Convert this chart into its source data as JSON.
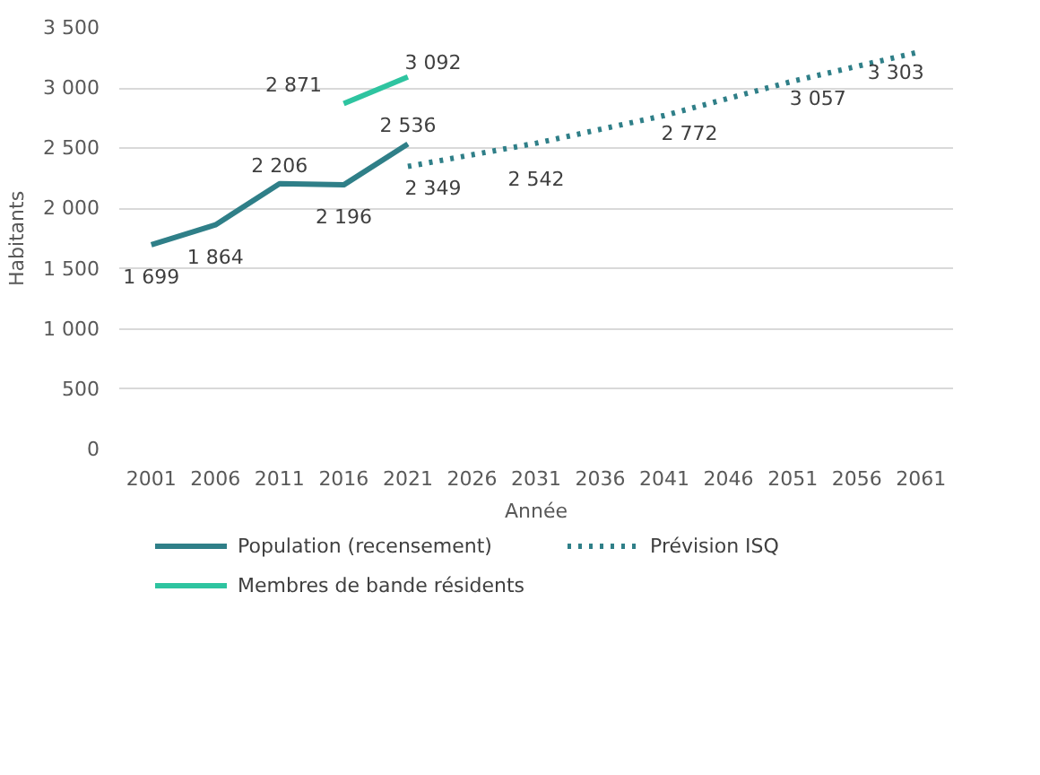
{
  "chart_data": {
    "type": "line",
    "xlabel": "Année",
    "ylabel": "Habitants",
    "xlim": [
      1998.5,
      2063.5
    ],
    "ylim": [
      0,
      3500
    ],
    "xticks": [
      2001,
      2006,
      2011,
      2016,
      2021,
      2026,
      2031,
      2036,
      2041,
      2046,
      2051,
      2056,
      2061
    ],
    "yticks": [
      0,
      500,
      {
        "value": 1000,
        "label": "1 000"
      },
      {
        "value": 1500,
        "label": "1 500"
      },
      {
        "value": 2000,
        "label": "2 000"
      },
      {
        "value": 2500,
        "label": "2 500"
      },
      {
        "value": 3000,
        "label": "3 000"
      },
      {
        "value": 3500,
        "label": "3 500"
      }
    ],
    "grid": "y",
    "legend": "bottom",
    "marker": "none",
    "series": [
      {
        "name": "Population (recensement)",
        "color": "#2f7f88",
        "line_style": "solid",
        "x": [
          2001,
          2006,
          2011,
          2016,
          2021
        ],
        "values": [
          1699,
          1864,
          2206,
          2196,
          2536
        ],
        "value_labels": [
          "1 699",
          "1 864",
          "2 206",
          "2 196",
          "2 536"
        ]
      },
      {
        "name": "Prévision ISQ",
        "color": "#2f7f88",
        "line_style": "dotted",
        "x": [
          2021,
          2031,
          2041,
          2051,
          2061
        ],
        "values": [
          2349,
          2542,
          2772,
          3057,
          3303
        ],
        "value_labels": [
          "2 349",
          "2 542",
          "2 772",
          "3 057",
          "3 303"
        ]
      },
      {
        "name": "Membres de bande résidents",
        "color": "#2ec4a0",
        "line_style": "solid",
        "x": [
          2016,
          2021
        ],
        "values": [
          2871,
          3092
        ],
        "value_labels": [
          "2 871",
          "3 092"
        ]
      }
    ]
  }
}
